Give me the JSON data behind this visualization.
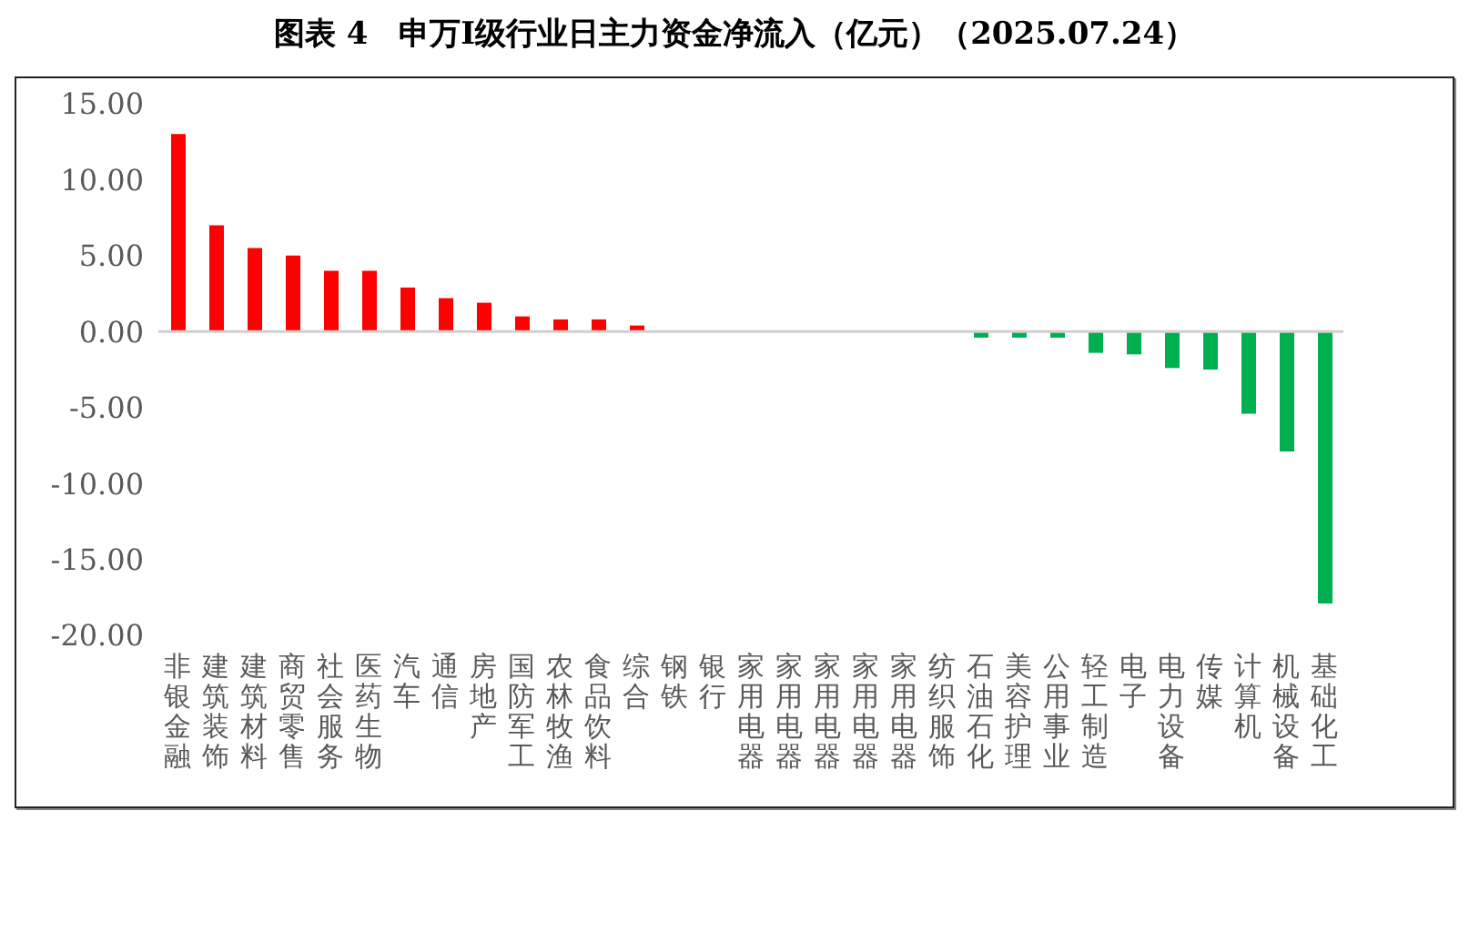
{
  "chart_data": {
    "type": "bar",
    "title": "图表 4　申万Ⅰ级行业日主力资金净流入（亿元）（2025.07.24）",
    "categories": [
      "非银金融",
      "建筑装饰",
      "建筑材料",
      "商贸零售",
      "社会服务",
      "医药生物",
      "汽车",
      "通信",
      "房地产",
      "国防军工",
      "农林牧渔",
      "食品饮料",
      "综合",
      "钢铁",
      "银行",
      "家用电器",
      "家用电器",
      "家用电器",
      "家用电器",
      "家用电器",
      "纺织服饰",
      "石油石化",
      "美容护理",
      "公用事业",
      "轻工制造",
      "电子",
      "电力设备",
      "传媒",
      "计算机",
      "机械设备",
      "基础化工"
    ],
    "values": [
      13.0,
      7.0,
      5.5,
      5.0,
      4.0,
      4.0,
      2.9,
      2.2,
      1.9,
      1.0,
      0.8,
      0.8,
      0.4,
      0,
      0,
      0,
      0,
      0,
      0,
      0,
      0,
      -0.4,
      -0.4,
      -0.4,
      -1.4,
      -1.5,
      -2.4,
      -2.5,
      -5.4,
      -7.9,
      -17.9
    ],
    "colors": [
      "#ff0000",
      "#ff0000",
      "#ff0000",
      "#ff0000",
      "#ff0000",
      "#ff0000",
      "#ff0000",
      "#ff0000",
      "#ff0000",
      "#ff0000",
      "#ff0000",
      "#ff0000",
      "#ff0000",
      "#ff0000",
      "#ff0000",
      "#ff0000",
      "#ff0000",
      "#ff0000",
      "#ff0000",
      "#ff0000",
      "#ff0000",
      "#00b050",
      "#00b050",
      "#00b050",
      "#00b050",
      "#00b050",
      "#00b050",
      "#00b050",
      "#00b050",
      "#00b050",
      "#00b050"
    ],
    "ylim": [
      -20,
      15
    ],
    "yticks": [
      {
        "value": 15,
        "label": "15.00"
      },
      {
        "value": 10,
        "label": "10.00"
      },
      {
        "value": 5,
        "label": "5.00"
      },
      {
        "value": 0,
        "label": "0.00"
      },
      {
        "value": -5,
        "label": "-5.00"
      },
      {
        "value": -10,
        "label": "-10.00"
      },
      {
        "value": -15,
        "label": "-15.00"
      },
      {
        "value": -20,
        "label": "-20.00"
      }
    ],
    "legend": false
  }
}
